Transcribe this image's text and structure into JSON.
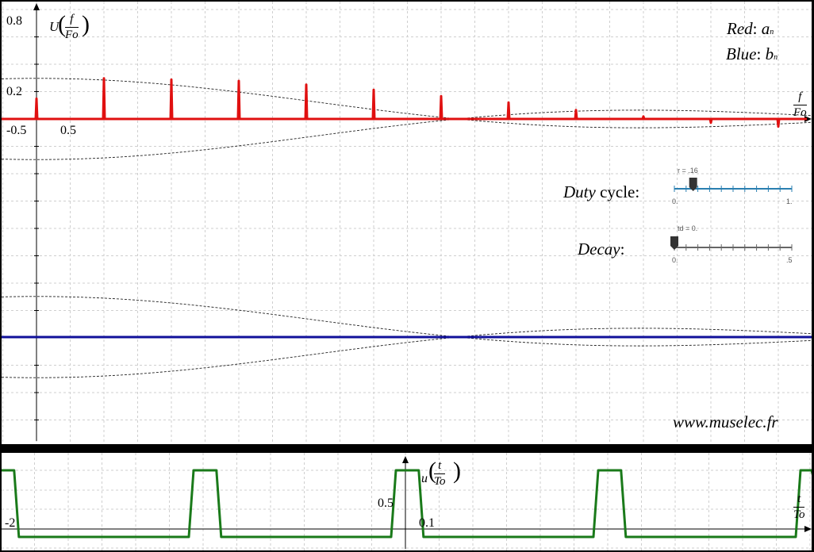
{
  "spectrum": {
    "y_axis": {
      "ticks": [
        "0.8",
        "0.2"
      ],
      "var_num": "f",
      "var_den": "Fo",
      "func": "U"
    },
    "x_axis": {
      "ticks": [
        "-0.5",
        "0.5"
      ],
      "var_num": "f",
      "var_den": "Fo"
    },
    "legend": {
      "red_word": "Red",
      "red_sym": "a",
      "red_sub": "n",
      "blue_word": "Blue",
      "blue_sym": "b",
      "blue_sub": "n"
    },
    "colors": {
      "an": "#e01010",
      "bn": "#10109a"
    },
    "an_values": [
      0.16,
      0.32,
      0.31,
      0.3,
      0.27,
      0.23,
      0.18,
      0.13,
      0.07,
      0.02,
      -0.03,
      -0.06,
      -0.08,
      -0.09,
      -0.08,
      -0.06,
      -0.03
    ],
    "bn_values": [
      0,
      0,
      0,
      0,
      0,
      0,
      0,
      0,
      0,
      0,
      0,
      0,
      0,
      0,
      0,
      0,
      0
    ],
    "website": "www.muselec.fr"
  },
  "sliders": {
    "duty": {
      "label_italic": "Duty",
      "label_rest": "cycle:",
      "value_text": "r = .16",
      "value": 0.16,
      "min_text": "0.",
      "max_text": "1.",
      "color": "#2a7fb0"
    },
    "decay": {
      "label_italic": "Decay",
      "label_rest": ":",
      "value_text": "td = 0.",
      "value": 0,
      "min_text": "0.",
      "max_text": ".5",
      "color": "#666666"
    }
  },
  "time": {
    "func": "u",
    "var_num": "t",
    "var_den": "To",
    "y_tick": "0.5",
    "x_ticks": [
      "-2",
      "0.1"
    ],
    "color": "#1a7a1a",
    "duty": 0.16
  }
}
